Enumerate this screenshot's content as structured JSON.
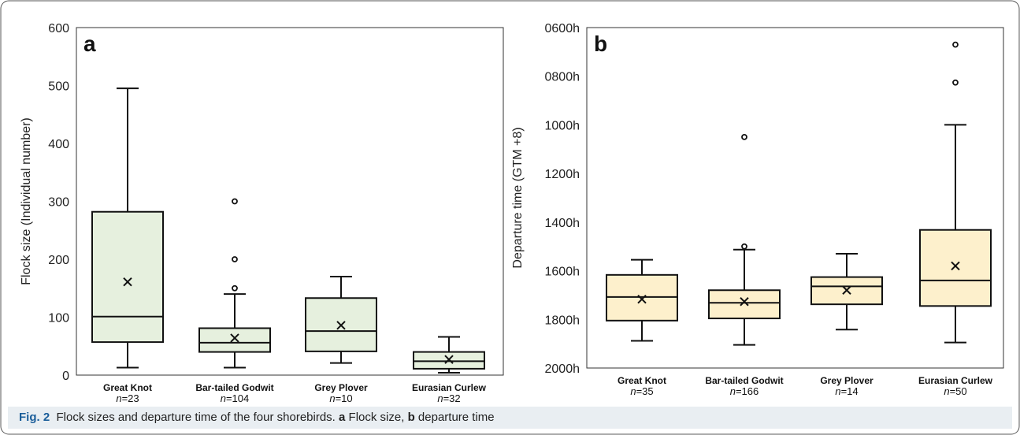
{
  "caption": {
    "fig_label": "Fig. 2",
    "text_1": "Flock sizes and departure time of the four shorebirds.",
    "letter_a": "a",
    "text_2": "Flock size,",
    "letter_b": "b",
    "text_3": "departure time"
  },
  "chart_data": [
    {
      "type": "box",
      "panel_label": "a",
      "title": "",
      "xlabel": "",
      "ylabel": "Flock size (Individual number)",
      "ylim": [
        0,
        600
      ],
      "yticks": [
        "0",
        "100",
        "200",
        "300",
        "400",
        "500",
        "600"
      ],
      "box_fill": "#e6f0de",
      "categories": [
        {
          "name": "Great Knot",
          "n_label": "n",
          "n_value": "=23",
          "min": 13,
          "q1": 57,
          "median": 101,
          "q3": 282,
          "max": 495,
          "mean": 161,
          "outliers": []
        },
        {
          "name": "Bar-tailed Godwit",
          "n_label": "n",
          "n_value": "=104",
          "min": 13,
          "q1": 40,
          "median": 56,
          "q3": 81,
          "max": 140,
          "mean": 64,
          "outliers": [
            150,
            200,
            300
          ]
        },
        {
          "name": "Grey Plover",
          "n_label": "n",
          "n_value": "=10",
          "min": 21,
          "q1": 41,
          "median": 76,
          "q3": 133,
          "max": 170,
          "mean": 86,
          "outliers": []
        },
        {
          "name": "Eurasian Curlew",
          "n_label": "n",
          "n_value": "=32",
          "min": 4,
          "q1": 11,
          "median": 24,
          "q3": 40,
          "max": 66,
          "mean": 27,
          "outliers": []
        }
      ]
    },
    {
      "type": "box",
      "panel_label": "b",
      "title": "",
      "xlabel": "",
      "ylabel": "Departure time (GTM +8)",
      "ylim": [
        600,
        2000
      ],
      "inverted": true,
      "yticks": [
        "0600h",
        "0800h",
        "1000h",
        "1200h",
        "1400h",
        "1600h",
        "1800h",
        "2000h"
      ],
      "box_fill": "#fdf0cc",
      "categories": [
        {
          "name": "Great Knot",
          "n_label": "n",
          "n_value": "=35",
          "min": 1555,
          "q1": 1617,
          "median": 1708,
          "q3": 1805,
          "max": 1888,
          "mean": 1717,
          "outliers": []
        },
        {
          "name": "Bar-tailed Godwit",
          "n_label": "n",
          "n_value": "=166",
          "min": 1513,
          "q1": 1680,
          "median": 1732,
          "q3": 1796,
          "max": 1905,
          "mean": 1727,
          "outliers": [
            1050,
            1500
          ]
        },
        {
          "name": "Grey Plover",
          "n_label": "n",
          "n_value": "=14",
          "min": 1530,
          "q1": 1626,
          "median": 1664,
          "q3": 1738,
          "max": 1842,
          "mean": 1680,
          "outliers": []
        },
        {
          "name": "Eurasian Curlew",
          "n_label": "n",
          "n_value": "=50",
          "min": 1000,
          "q1": 1432,
          "median": 1640,
          "q3": 1745,
          "max": 1895,
          "mean": 1580,
          "outliers": [
            670,
            826
          ]
        }
      ]
    }
  ]
}
